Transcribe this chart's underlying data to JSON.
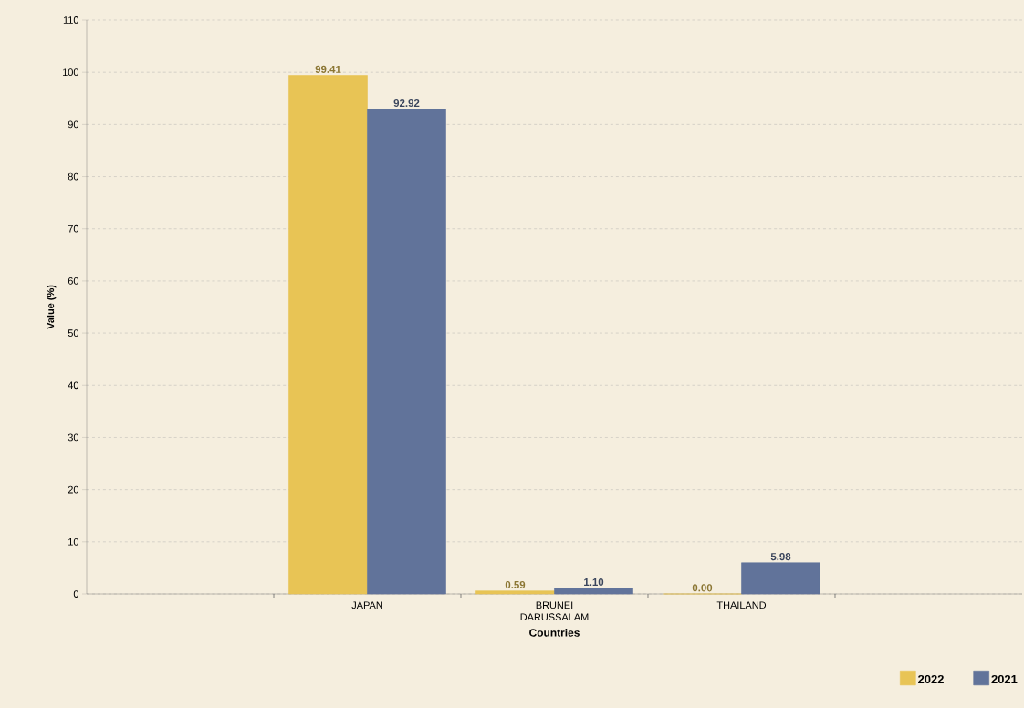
{
  "chart_data": {
    "type": "bar",
    "xlabel": "Countries",
    "ylabel": "Value (%)",
    "categories": [
      null,
      "JAPAN",
      "BRUNEI DARUSSALAM",
      "THAILAND",
      null
    ],
    "series": [
      {
        "name": "2022",
        "color": "#e8c455",
        "values": [
          null,
          99.41,
          0.59,
          0.0,
          null
        ],
        "value_labels": [
          null,
          "99.41",
          "0.59",
          "0.00",
          null
        ]
      },
      {
        "name": "2021",
        "color": "#61739a",
        "values": [
          null,
          92.92,
          1.1,
          5.98,
          null
        ],
        "value_labels": [
          null,
          "92.92",
          "1.10",
          "5.98",
          null
        ]
      }
    ],
    "ylim": [
      0,
      110
    ],
    "yticks": [
      0,
      10,
      20,
      30,
      40,
      50,
      60,
      70,
      80,
      90,
      100,
      110
    ],
    "grid": "y",
    "legend": "bottom right"
  }
}
